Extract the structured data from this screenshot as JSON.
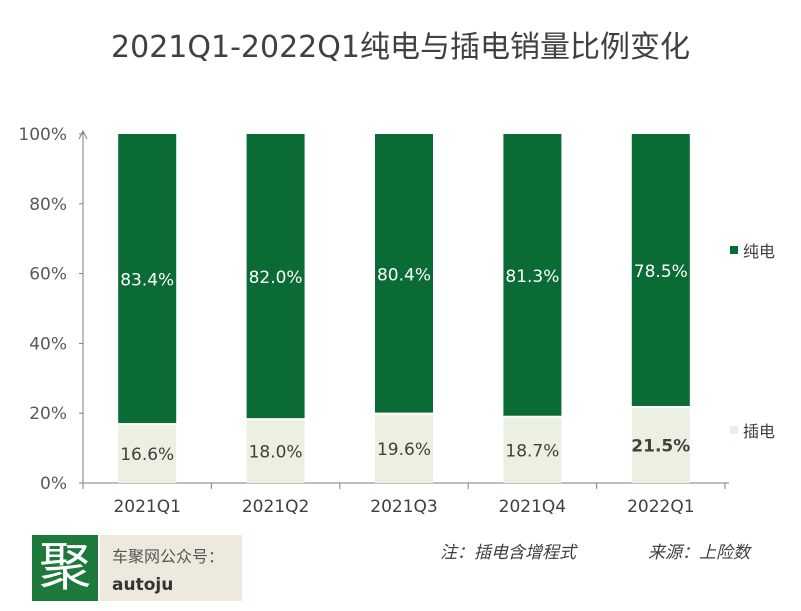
{
  "chart_data": {
    "type": "bar",
    "stacked": true,
    "title": "2021Q1-2022Q1纯电与插电销量比例变化",
    "categories": [
      "2021Q1",
      "2021Q2",
      "2021Q3",
      "2021Q4",
      "2022Q1"
    ],
    "series": [
      {
        "name": "插电",
        "values": [
          16.6,
          18.0,
          19.6,
          18.7,
          21.5
        ],
        "labels": [
          "16.6%",
          "18.0%",
          "19.6%",
          "18.7%",
          "21.5%"
        ],
        "color": "#ecf0e1"
      },
      {
        "name": "纯电",
        "values": [
          83.4,
          82.0,
          80.4,
          81.3,
          78.5
        ],
        "labels": [
          "83.4%",
          "82.0%",
          "80.4%",
          "81.3%",
          "78.5%"
        ],
        "color": "#0a6b34"
      }
    ],
    "y_ticks": [
      "0%",
      "20%",
      "40%",
      "60%",
      "80%",
      "100%"
    ],
    "ylim": [
      0,
      100
    ],
    "xlabel": "",
    "ylabel": "",
    "grid": false,
    "legend_position": "right"
  },
  "legend": {
    "pure_electric": "纯电",
    "plugin_hybrid": "插电"
  },
  "footer": {
    "logo_char": "聚",
    "wechat_label": "车聚网公众号：",
    "wechat_id": "autoju",
    "note": "注：插电含增程式",
    "source": "来源：上险数"
  },
  "colors": {
    "pure_electric": "#0a6b34",
    "plugin_hybrid": "#ecf0e1",
    "axis": "#7f7f7f",
    "logo_bg": "#1e7a3c",
    "wechat_bg": "#ede9dc"
  }
}
